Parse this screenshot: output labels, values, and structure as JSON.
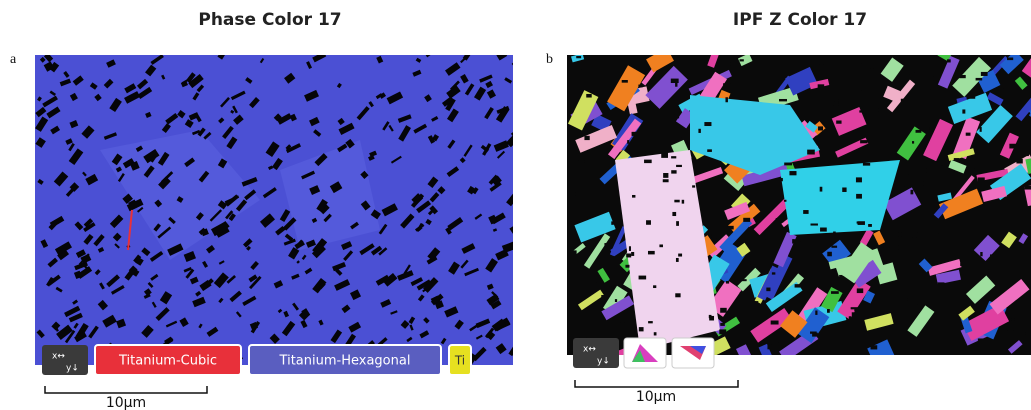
{
  "panels": [
    {
      "label": "a",
      "title": "Phase Color 17",
      "legend": [
        "Titanium-Cubic",
        "Titanium-Hexagonal",
        "Ti"
      ],
      "scale_bar": "10μm"
    },
    {
      "label": "b",
      "title": "IPF Z Color 17",
      "scale_bar": "10μm"
    }
  ]
}
